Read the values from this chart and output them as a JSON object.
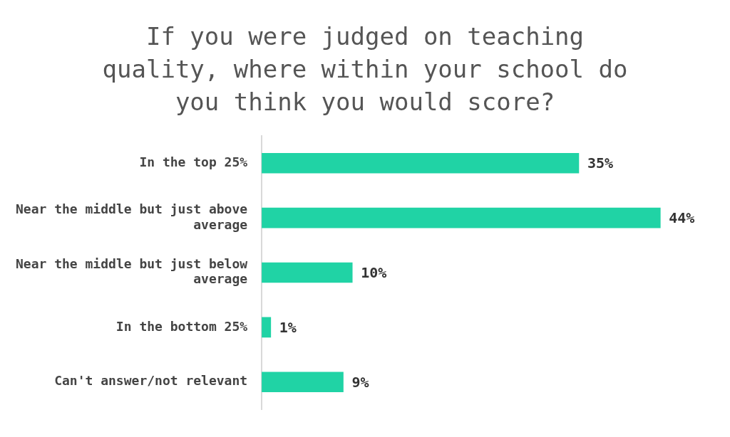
{
  "chart_data": {
    "type": "bar",
    "orientation": "horizontal",
    "title": "If you were judged on teaching quality, where within your school do you think you would score?",
    "categories": [
      "In the top 25%",
      "Near the middle but just above average",
      "Near the middle but just below average",
      "In the bottom 25%",
      "Can't answer/not relevant"
    ],
    "values": [
      35,
      44,
      10,
      1,
      9
    ],
    "value_labels": [
      "35%",
      "44%",
      "10%",
      "1%",
      "9%"
    ],
    "color": "#20d3a5"
  }
}
